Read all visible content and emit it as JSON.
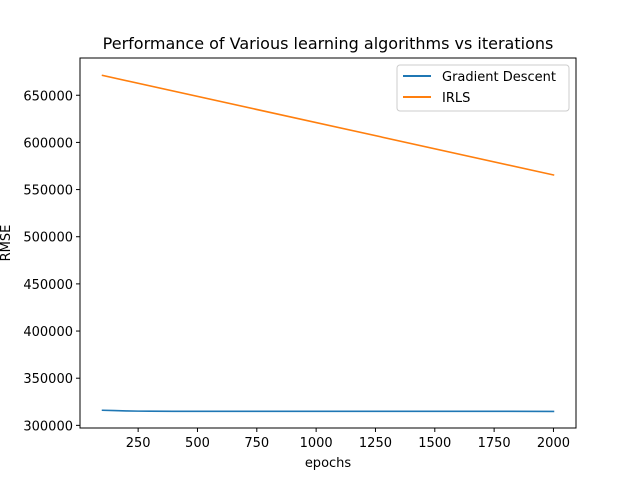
{
  "chart_data": {
    "type": "line",
    "title": "Performance of Various learning algorithms vs iterations",
    "xlabel": "epochs",
    "ylabel": "RMSE",
    "xlim": [
      5,
      2095
    ],
    "ylim": [
      297200,
      689500
    ],
    "x_ticks": [
      250,
      500,
      750,
      1000,
      1250,
      1500,
      1750,
      2000
    ],
    "x_tick_labels": [
      "250",
      "500",
      "750",
      "1000",
      "1250",
      "1500",
      "1750",
      "2000"
    ],
    "y_ticks": [
      300000,
      350000,
      400000,
      450000,
      500000,
      550000,
      600000,
      650000
    ],
    "y_tick_labels": [
      "300000",
      "350000",
      "400000",
      "450000",
      "500000",
      "550000",
      "600000",
      "650000"
    ],
    "grid": false,
    "legend_position": "top-right",
    "series": [
      {
        "name": "Gradient Descent",
        "color": "#1f77b4",
        "x": [
          100,
          150,
          200,
          250,
          300,
          400,
          500,
          750,
          1000,
          1250,
          1500,
          1750,
          2000
        ],
        "y": [
          316000,
          315700,
          315300,
          315100,
          315000,
          314900,
          314900,
          314900,
          314900,
          314900,
          314900,
          314900,
          314800
        ]
      },
      {
        "name": "IRLS",
        "color": "#ff7f0e",
        "x": [
          100,
          2000
        ],
        "y": [
          671000,
          565500
        ]
      }
    ]
  }
}
